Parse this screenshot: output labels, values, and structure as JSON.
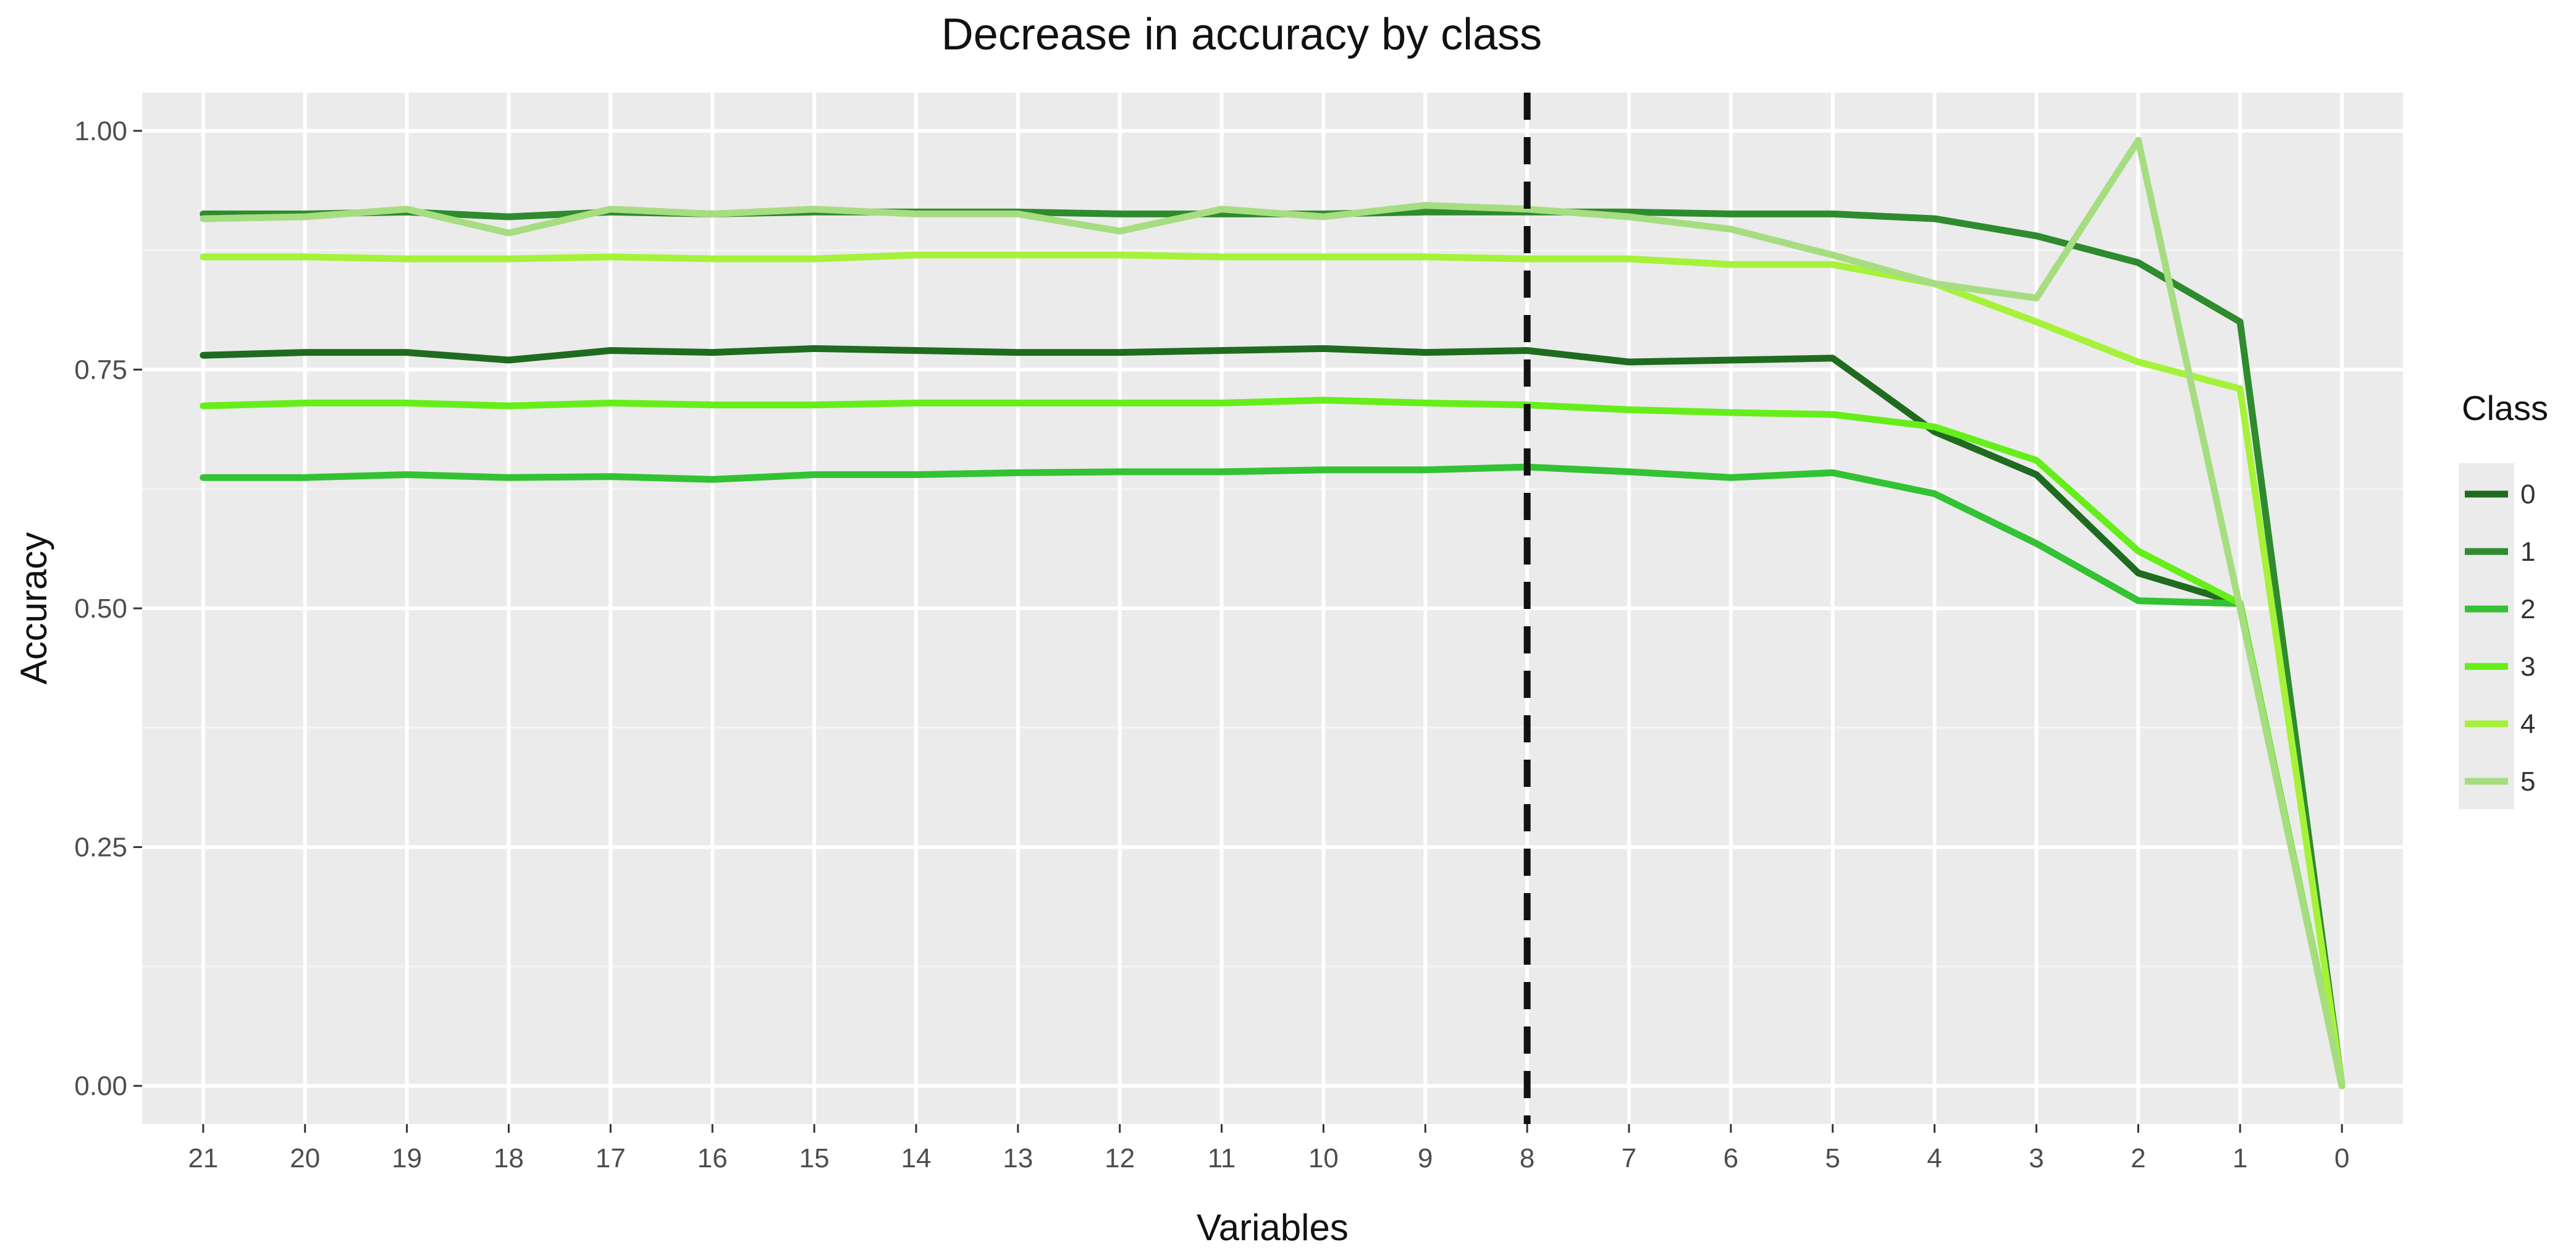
{
  "chart_data": {
    "type": "line",
    "title": "Decrease in accuracy by class",
    "xlabel": "Variables",
    "ylabel": "Accuracy",
    "x": [
      21,
      20,
      19,
      18,
      17,
      16,
      15,
      14,
      13,
      12,
      11,
      10,
      9,
      8,
      7,
      6,
      5,
      4,
      3,
      2,
      1,
      0
    ],
    "x_reversed": true,
    "ylim": [
      -0.04,
      1.04
    ],
    "yticks": [
      0.0,
      0.25,
      0.5,
      0.75,
      1.0
    ],
    "ytick_labels": [
      "0.00",
      "0.25",
      "0.50",
      "0.75",
      "1.00"
    ],
    "grid": true,
    "vline": {
      "x": 8,
      "style": "dashed",
      "color": "#111111"
    },
    "legend": {
      "title": "Class",
      "position": "right"
    },
    "colors": {
      "panel": "#ebebeb",
      "grid_major": "#ffffff",
      "grid_minor": "#f5f5f5"
    },
    "series": [
      {
        "name": "0",
        "color": "#1f6b1f",
        "values": [
          0.765,
          0.768,
          0.768,
          0.76,
          0.77,
          0.768,
          0.772,
          0.77,
          0.768,
          0.768,
          0.77,
          0.772,
          0.768,
          0.77,
          0.758,
          0.76,
          0.762,
          0.685,
          0.64,
          0.537,
          0.505,
          0.0
        ]
      },
      {
        "name": "1",
        "color": "#2e8b2e",
        "values": [
          0.913,
          0.913,
          0.915,
          0.91,
          0.915,
          0.913,
          0.915,
          0.915,
          0.915,
          0.913,
          0.913,
          0.913,
          0.915,
          0.915,
          0.915,
          0.913,
          0.913,
          0.908,
          0.89,
          0.862,
          0.8,
          0.0
        ]
      },
      {
        "name": "2",
        "color": "#33c233",
        "values": [
          0.637,
          0.637,
          0.64,
          0.637,
          0.638,
          0.635,
          0.64,
          0.64,
          0.642,
          0.643,
          0.643,
          0.645,
          0.645,
          0.648,
          0.643,
          0.637,
          0.642,
          0.62,
          0.568,
          0.508,
          0.505,
          0.0
        ]
      },
      {
        "name": "3",
        "color": "#66ee1a",
        "values": [
          0.712,
          0.715,
          0.715,
          0.712,
          0.715,
          0.713,
          0.713,
          0.715,
          0.715,
          0.715,
          0.715,
          0.718,
          0.715,
          0.713,
          0.708,
          0.705,
          0.703,
          0.69,
          0.655,
          0.56,
          0.505,
          0.0
        ]
      },
      {
        "name": "4",
        "color": "#a6f23a",
        "values": [
          0.868,
          0.868,
          0.866,
          0.866,
          0.868,
          0.866,
          0.866,
          0.87,
          0.87,
          0.87,
          0.868,
          0.868,
          0.868,
          0.866,
          0.866,
          0.86,
          0.86,
          0.84,
          0.8,
          0.758,
          0.73,
          0.0
        ]
      },
      {
        "name": "5",
        "color": "#a6dd80",
        "values": [
          0.908,
          0.91,
          0.918,
          0.893,
          0.918,
          0.913,
          0.918,
          0.913,
          0.913,
          0.895,
          0.918,
          0.91,
          0.922,
          0.918,
          0.91,
          0.897,
          0.87,
          0.84,
          0.825,
          0.99,
          0.5,
          0.0
        ]
      }
    ]
  }
}
